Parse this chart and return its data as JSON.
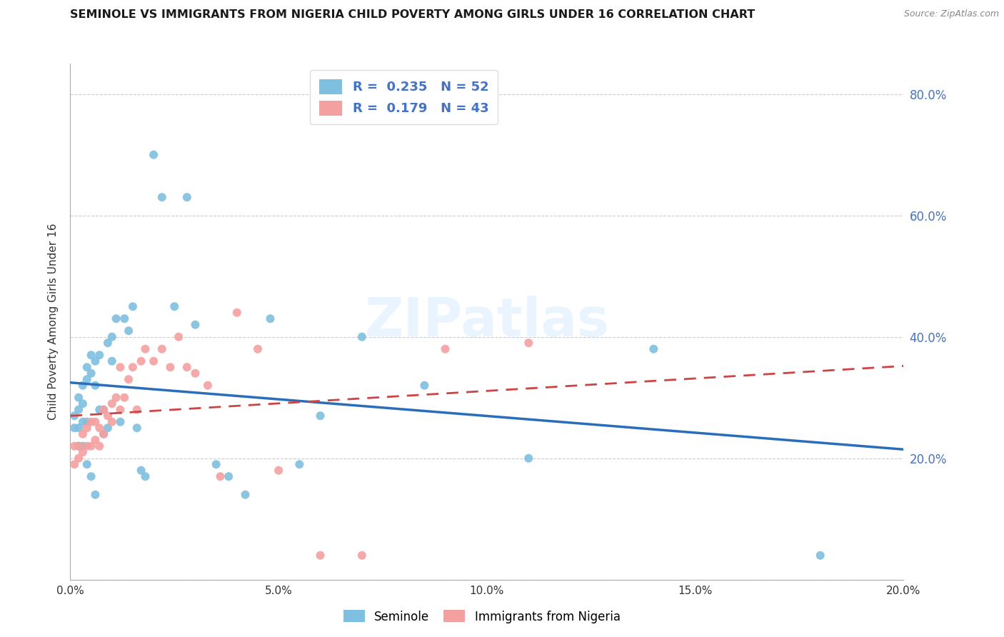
{
  "title": "SEMINOLE VS IMMIGRANTS FROM NIGERIA CHILD POVERTY AMONG GIRLS UNDER 16 CORRELATION CHART",
  "source": "Source: ZipAtlas.com",
  "ylabel": "Child Poverty Among Girls Under 16",
  "xlim": [
    0,
    0.2
  ],
  "ylim": [
    0,
    0.85
  ],
  "xticks": [
    0.0,
    0.05,
    0.1,
    0.15,
    0.2
  ],
  "yticks": [
    0.0,
    0.2,
    0.4,
    0.6,
    0.8
  ],
  "right_ytick_labels": [
    0.2,
    0.4,
    0.6,
    0.8
  ],
  "seminole_R": 0.235,
  "seminole_N": 52,
  "nigeria_R": 0.179,
  "nigeria_N": 43,
  "seminole_color": "#7fbfdf",
  "nigeria_color": "#f4a0a0",
  "seminole_line_color": "#2a6ebb",
  "nigeria_line_color": "#cc4444",
  "watermark": "ZIPatlas",
  "seminole_x": [
    0.001,
    0.001,
    0.002,
    0.002,
    0.002,
    0.002,
    0.003,
    0.003,
    0.003,
    0.003,
    0.004,
    0.004,
    0.004,
    0.004,
    0.005,
    0.005,
    0.005,
    0.006,
    0.006,
    0.006,
    0.007,
    0.007,
    0.008,
    0.008,
    0.009,
    0.009,
    0.01,
    0.01,
    0.011,
    0.012,
    0.013,
    0.014,
    0.015,
    0.016,
    0.017,
    0.018,
    0.02,
    0.022,
    0.025,
    0.028,
    0.03,
    0.035,
    0.038,
    0.042,
    0.048,
    0.055,
    0.06,
    0.07,
    0.085,
    0.11,
    0.14,
    0.18
  ],
  "seminole_y": [
    0.27,
    0.25,
    0.3,
    0.28,
    0.25,
    0.22,
    0.32,
    0.29,
    0.26,
    0.22,
    0.35,
    0.33,
    0.26,
    0.19,
    0.37,
    0.34,
    0.17,
    0.36,
    0.32,
    0.14,
    0.37,
    0.28,
    0.28,
    0.24,
    0.39,
    0.25,
    0.4,
    0.36,
    0.43,
    0.26,
    0.43,
    0.41,
    0.45,
    0.25,
    0.18,
    0.17,
    0.7,
    0.63,
    0.45,
    0.63,
    0.42,
    0.19,
    0.17,
    0.14,
    0.43,
    0.19,
    0.27,
    0.4,
    0.32,
    0.2,
    0.38,
    0.04
  ],
  "nigeria_x": [
    0.001,
    0.001,
    0.002,
    0.002,
    0.003,
    0.003,
    0.004,
    0.004,
    0.005,
    0.005,
    0.006,
    0.006,
    0.007,
    0.007,
    0.008,
    0.008,
    0.009,
    0.01,
    0.01,
    0.011,
    0.012,
    0.012,
    0.013,
    0.014,
    0.015,
    0.016,
    0.017,
    0.018,
    0.02,
    0.022,
    0.024,
    0.026,
    0.028,
    0.03,
    0.033,
    0.036,
    0.04,
    0.045,
    0.05,
    0.06,
    0.07,
    0.09,
    0.11
  ],
  "nigeria_y": [
    0.19,
    0.22,
    0.2,
    0.22,
    0.21,
    0.24,
    0.22,
    0.25,
    0.22,
    0.26,
    0.23,
    0.26,
    0.25,
    0.22,
    0.28,
    0.24,
    0.27,
    0.26,
    0.29,
    0.3,
    0.28,
    0.35,
    0.3,
    0.33,
    0.35,
    0.28,
    0.36,
    0.38,
    0.36,
    0.38,
    0.35,
    0.4,
    0.35,
    0.34,
    0.32,
    0.17,
    0.44,
    0.38,
    0.18,
    0.04,
    0.04,
    0.38,
    0.39
  ]
}
